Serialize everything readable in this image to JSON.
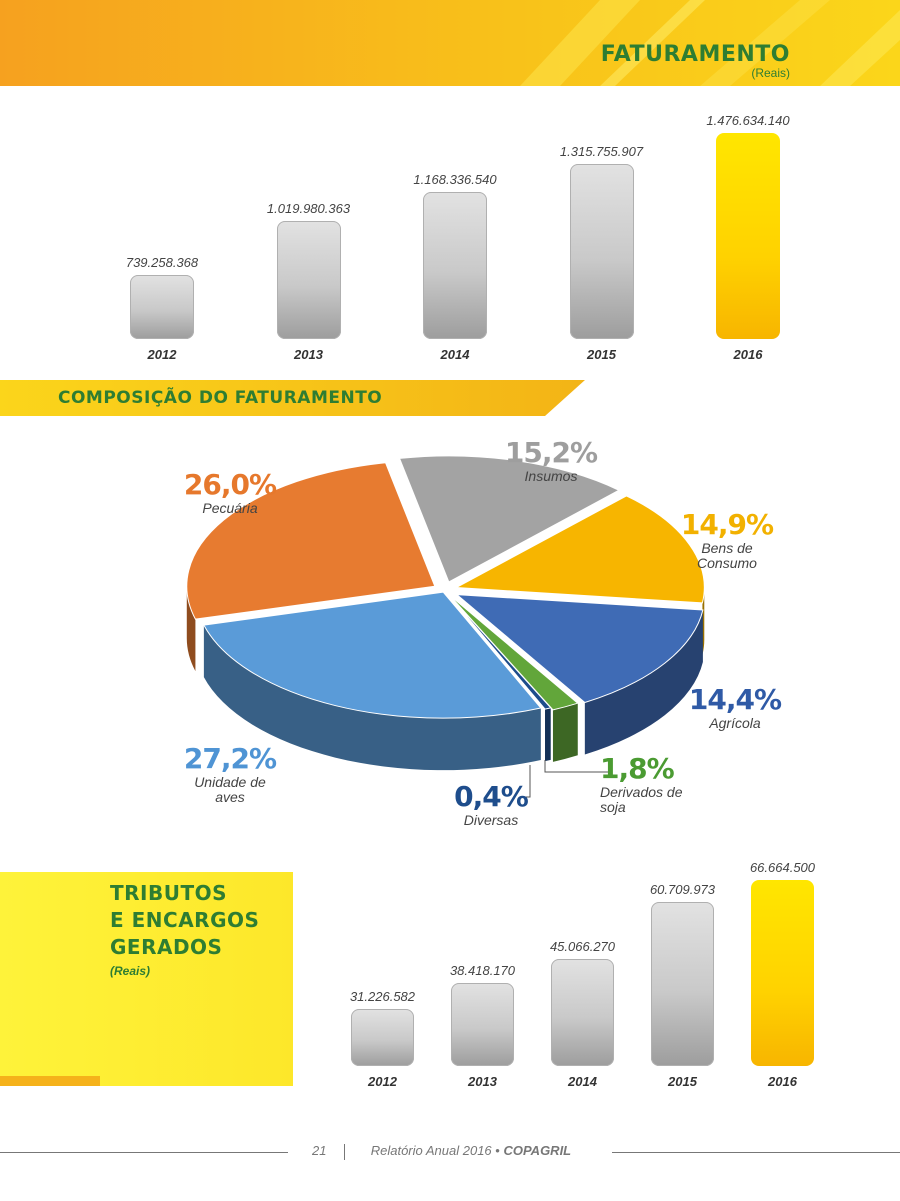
{
  "header": {
    "title": "FATURAMENTO",
    "subtitle": "(Reais)"
  },
  "section_composicao": {
    "title": "COMPOSIÇÃO DO FATURAMENTO"
  },
  "section_tributos": {
    "title_lines": [
      "TRIBUTOS",
      "E ENCARGOS",
      "GERADOS"
    ],
    "subtitle": "(Reais)"
  },
  "footer": {
    "page_number": "21",
    "report": "Relatório Anual 2016",
    "separator": "•",
    "company": "COPAGRIL"
  },
  "colors": {
    "yellow": "#f9d616",
    "orange_yellow": "#f5a623",
    "green": "#2e7d32",
    "bar_gray": "#c7c7c7",
    "bar_highlight": "#ffd800"
  },
  "chart_data": [
    {
      "type": "bar",
      "title": "FATURAMENTO",
      "subtitle": "(Reais)",
      "categories": [
        "2012",
        "2013",
        "2014",
        "2015",
        "2016"
      ],
      "values": [
        739258368,
        1019980363,
        1168336540,
        1315755907,
        1476634140
      ],
      "value_labels": [
        "739.258.368",
        "1.019.980.363",
        "1.168.336.540",
        "1.315.755.907",
        "1.476.634.140"
      ],
      "highlight": "2016"
    },
    {
      "type": "pie",
      "title": "COMPOSIÇÃO DO FATURAMENTO",
      "slices": [
        {
          "label": "Insumos",
          "value": 15.2,
          "pct": "15,2%",
          "color": "#a3a3a3"
        },
        {
          "label": "Bens de Consumo",
          "value": 14.9,
          "pct": "14,9%",
          "color": "#f7b500"
        },
        {
          "label": "Agrícola",
          "value": 14.4,
          "pct": "14,4%",
          "color": "#3f6bb5"
        },
        {
          "label": "Derivados de soja",
          "value": 1.8,
          "pct": "1,8%",
          "color": "#62a63a"
        },
        {
          "label": "Diversas",
          "value": 0.4,
          "pct": "0,4%",
          "color": "#1e4d8c"
        },
        {
          "label": "Unidade de aves",
          "value": 27.2,
          "pct": "27,2%",
          "color": "#5a9bd8"
        },
        {
          "label": "Pecuária",
          "value": 26.0,
          "pct": "26,0%",
          "color": "#e77b30"
        }
      ]
    },
    {
      "type": "bar",
      "title": "TRIBUTOS E ENCARGOS GERADOS",
      "subtitle": "(Reais)",
      "categories": [
        "2012",
        "2013",
        "2014",
        "2015",
        "2016"
      ],
      "values": [
        31226582,
        38418170,
        45066270,
        60709973,
        66664500
      ],
      "value_labels": [
        "31.226.582",
        "38.418.170",
        "45.066.270",
        "60.709.973",
        "66.664.500"
      ],
      "highlight": "2016"
    }
  ]
}
